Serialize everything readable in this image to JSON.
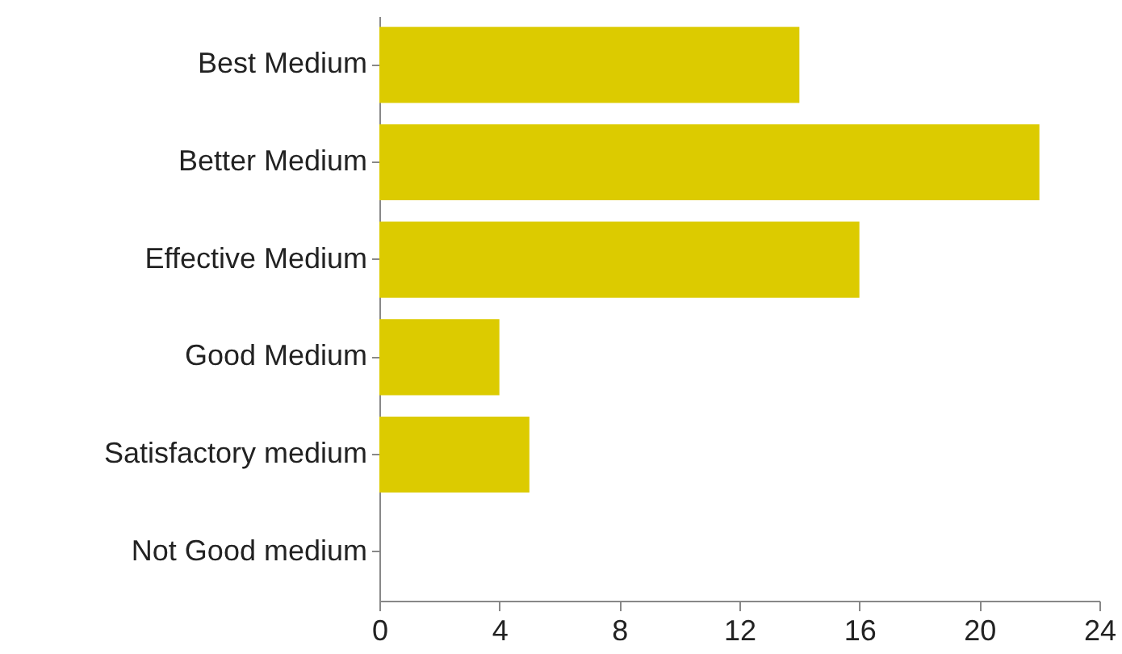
{
  "chart_data": {
    "type": "bar",
    "orientation": "horizontal",
    "categories": [
      "Best Medium",
      "Better Medium",
      "Effective Medium",
      "Good Medium",
      "Satisfactory medium",
      "Not Good medium"
    ],
    "values": [
      14,
      22,
      16,
      4,
      5,
      0
    ],
    "color": "#dccb00",
    "xlim": [
      0,
      24
    ],
    "xticks": [
      0,
      4,
      8,
      12,
      16,
      20,
      24
    ],
    "grid": false
  }
}
